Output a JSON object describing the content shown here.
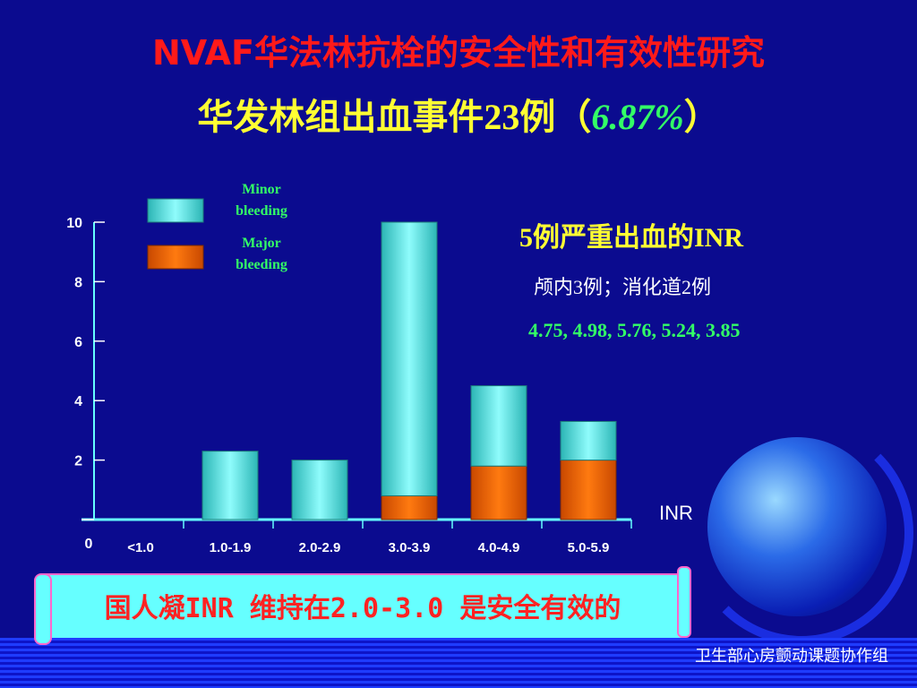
{
  "header": {
    "title": "NVAF华法林抗栓的安全性和有效性研究",
    "subtitle_main": "华发林组出血事件23例",
    "subtitle_open": "（",
    "subtitle_pct": "6.87%",
    "subtitle_close": "）"
  },
  "side_panel": {
    "heading": "5例严重出血的INR",
    "detail": "颅内3例；消化道2例",
    "values": "4.75, 4.98, 5.76, 5.24, 3.85"
  },
  "banner": {
    "text": "国人凝INR 维持在2.0-3.0 是安全有效的"
  },
  "footer": {
    "text": "卫生部心房颤动课题协作组"
  },
  "colors": {
    "background": "#0b0b8f",
    "minor": "#5fe0e0",
    "major": "#ff6a00",
    "axis": "#66ffff"
  },
  "chart_data": {
    "type": "bar",
    "stacked": true,
    "categories": [
      "<1.0",
      "1.0-1.9",
      "2.0-2.9",
      "3.0-3.9",
      "4.0-4.9",
      "5.0-5.9"
    ],
    "series": [
      {
        "name": "Major bleeding",
        "values": [
          0,
          0,
          0,
          0.8,
          1.8,
          2.0
        ]
      },
      {
        "name": "Minor bleeding",
        "values": [
          0,
          2.3,
          2.0,
          9.2,
          2.7,
          1.3
        ]
      }
    ],
    "legend": [
      {
        "label": "Minor bleeding",
        "line1": "Minor",
        "line2": "bleeding"
      },
      {
        "label": "Major bleeding",
        "line1": "Major",
        "line2": "bleeding"
      }
    ],
    "xlabel": "INR",
    "y_ticks": [
      "10",
      "8",
      "6",
      "4",
      "2"
    ],
    "zero_label": "0",
    "ylim": [
      0,
      10
    ],
    "legend_position": "top-left"
  }
}
